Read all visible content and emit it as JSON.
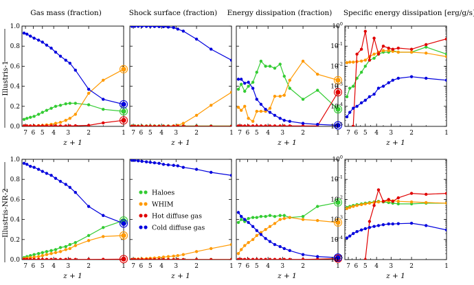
{
  "column_titles": [
    "Gas mass (fraction)",
    "Shock surface (fraction)",
    "Energy dissipation (fraction)",
    "Specific energy dissipation [erg/g/s]"
  ],
  "row_labels": [
    "Illustris-1",
    "Illustris-NR-2"
  ],
  "xlabel": "z + 1",
  "legend": [
    {
      "name": "Haloes",
      "color": "#33cc33"
    },
    {
      "name": "WHIM",
      "color": "#ff9900"
    },
    {
      "name": "Hot diffuse gas",
      "color": "#e00000"
    },
    {
      "name": "Cold diffuse gas",
      "color": "#0000dd"
    }
  ],
  "chart_data": [
    {
      "type": "line",
      "title": "Gas mass (fraction)",
      "row_label": "Illustris-1",
      "xscale": "log",
      "xlim": [
        1,
        7.5
      ],
      "yscale": "linear",
      "ylim": [
        0,
        1
      ],
      "xticks": [
        "7",
        "6",
        "5",
        "4",
        "3",
        "2",
        "1"
      ],
      "yticks": [
        "0.0",
        "0.2",
        "0.4",
        "0.6",
        "0.8",
        "1.0"
      ],
      "x": [
        7.2,
        6.8,
        6.35,
        5.9,
        5.4,
        5.0,
        4.6,
        4.2,
        3.85,
        3.5,
        3.15,
        2.9,
        2.6,
        2.0,
        1.5,
        1.0
      ],
      "series": [
        {
          "name": "Haloes",
          "values": [
            0.07,
            0.08,
            0.09,
            0.1,
            0.12,
            0.14,
            0.16,
            0.18,
            0.2,
            0.21,
            0.225,
            0.23,
            0.23,
            0.215,
            0.17,
            0.15
          ],
          "final_marker": true
        },
        {
          "name": "WHIM",
          "values": [
            0.005,
            0.005,
            0.005,
            0.006,
            0.008,
            0.01,
            0.015,
            0.02,
            0.03,
            0.04,
            0.06,
            0.08,
            0.12,
            0.33,
            0.46,
            0.57
          ],
          "final_marker": true
        },
        {
          "name": "Hot diffuse gas",
          "values": [
            0.005,
            0.005,
            0.005,
            0.005,
            0.005,
            0.005,
            0.005,
            0.005,
            0.005,
            0.005,
            0.005,
            0.005,
            0.006,
            0.01,
            0.035,
            0.06
          ],
          "final_marker": true
        },
        {
          "name": "Cold diffuse gas",
          "values": [
            0.93,
            0.92,
            0.9,
            0.88,
            0.86,
            0.84,
            0.81,
            0.78,
            0.74,
            0.7,
            0.66,
            0.63,
            0.56,
            0.37,
            0.27,
            0.22
          ],
          "final_marker": true
        }
      ]
    },
    {
      "type": "line",
      "title": "Shock surface (fraction)",
      "row_label": "Illustris-1",
      "xscale": "log",
      "xlim": [
        1,
        7.5
      ],
      "yscale": "linear",
      "ylim": [
        0,
        1
      ],
      "xticks": [
        "7",
        "6",
        "5",
        "4",
        "3",
        "2",
        "1"
      ],
      "x": [
        7.2,
        6.8,
        6.35,
        5.9,
        5.4,
        5.0,
        4.6,
        4.2,
        3.85,
        3.5,
        3.15,
        2.9,
        2.6,
        2.0,
        1.5,
        1.0
      ],
      "series": [
        {
          "name": "Haloes",
          "values": [
            0.005,
            0.005,
            0.005,
            0.005,
            0.005,
            0.005,
            0.005,
            0.005,
            0.005,
            0.005,
            0.005,
            0.005,
            0.005,
            0.005,
            0.005,
            0.005
          ]
        },
        {
          "name": "WHIM",
          "values": [
            0.002,
            0.002,
            0.002,
            0.002,
            0.002,
            0.002,
            0.002,
            0.002,
            0.002,
            0.003,
            0.005,
            0.01,
            0.03,
            0.11,
            0.21,
            0.34
          ]
        },
        {
          "name": "Hot diffuse gas",
          "values": [
            0.001,
            0.001,
            0.001,
            0.001,
            0.001,
            0.001,
            0.001,
            0.001,
            0.001,
            0.001,
            0.001,
            0.001,
            0.001,
            0.001,
            0.001,
            0.001
          ]
        },
        {
          "name": "Cold diffuse gas",
          "values": [
            0.998,
            0.998,
            0.998,
            0.998,
            0.997,
            0.997,
            0.996,
            0.995,
            0.994,
            0.99,
            0.985,
            0.97,
            0.95,
            0.87,
            0.77,
            0.66
          ]
        }
      ]
    },
    {
      "type": "line",
      "title": "Energy dissipation (fraction)",
      "row_label": "Illustris-1",
      "xscale": "log",
      "xlim": [
        1,
        7.5
      ],
      "yscale": "linear",
      "ylim": [
        0,
        1
      ],
      "xticks": [
        "7",
        "6",
        "5",
        "4",
        "3",
        "2",
        "1"
      ],
      "x": [
        7.2,
        6.8,
        6.35,
        5.9,
        5.4,
        5.0,
        4.6,
        4.2,
        3.85,
        3.5,
        3.15,
        2.9,
        2.6,
        2.0,
        1.5,
        1.0
      ],
      "series": [
        {
          "name": "Haloes",
          "values": [
            0.37,
            0.42,
            0.35,
            0.4,
            0.44,
            0.54,
            0.65,
            0.6,
            0.6,
            0.58,
            0.62,
            0.5,
            0.38,
            0.27,
            0.36,
            0.17
          ],
          "final_marker": true
        },
        {
          "name": "WHIM",
          "values": [
            0.19,
            0.16,
            0.2,
            0.08,
            0.05,
            0.15,
            0.15,
            0.15,
            0.18,
            0.3,
            0.3,
            0.31,
            0.46,
            0.65,
            0.52,
            0.46
          ],
          "final_marker": true
        },
        {
          "name": "Hot diffuse gas",
          "values": [
            0.005,
            0.005,
            0.005,
            0.005,
            0.005,
            0.005,
            0.005,
            0.005,
            0.005,
            0.005,
            0.005,
            0.005,
            0.005,
            0.005,
            0.005,
            0.34
          ],
          "final_marker": true
        },
        {
          "name": "Cold diffuse gas",
          "values": [
            0.47,
            0.47,
            0.43,
            0.44,
            0.38,
            0.27,
            0.22,
            0.17,
            0.14,
            0.11,
            0.08,
            0.06,
            0.05,
            0.03,
            0.02,
            0.01
          ],
          "final_marker": true
        }
      ]
    },
    {
      "type": "line",
      "title": "Specific energy dissipation [erg/g/s]",
      "row_label": "Illustris-1",
      "xscale": "log",
      "xlim": [
        1,
        7.5
      ],
      "yscale": "log",
      "ylim": [
        1e-05,
        1
      ],
      "xticks": [
        "7",
        "6",
        "5",
        "4",
        "3",
        "2",
        "1"
      ],
      "x": [
        7.2,
        6.8,
        6.35,
        5.9,
        5.4,
        5.0,
        4.6,
        4.2,
        3.85,
        3.5,
        3.15,
        2.9,
        2.6,
        2.0,
        1.5,
        1.0
      ],
      "series": [
        {
          "name": "Haloes",
          "values": [
            0.0003,
            0.0008,
            0.001,
            0.0025,
            0.005,
            0.01,
            0.02,
            0.025,
            0.04,
            0.05,
            0.05,
            0.06,
            0.05,
            0.05,
            0.09,
            0.04
          ]
        },
        {
          "name": "WHIM",
          "values": [
            0.015,
            0.016,
            0.016,
            0.017,
            0.018,
            0.02,
            0.03,
            0.04,
            0.05,
            0.06,
            0.06,
            0.055,
            0.05,
            0.05,
            0.045,
            0.03
          ]
        },
        {
          "name": "Hot diffuse gas",
          "values": [
            null,
            null,
            1e-05,
            0.04,
            0.07,
            0.55,
            0.02,
            0.25,
            0.04,
            0.1,
            0.08,
            0.07,
            0.08,
            0.07,
            0.12,
            0.23
          ]
        },
        {
          "name": "Cold diffuse gas",
          "values": [
            3e-05,
            5e-05,
            8e-05,
            0.0001,
            0.00015,
            0.0002,
            0.0003,
            0.0004,
            0.0008,
            0.001,
            0.0015,
            0.002,
            0.0025,
            0.003,
            0.0025,
            0.002
          ]
        }
      ]
    },
    {
      "type": "line",
      "title": "Gas mass (fraction)",
      "row_label": "Illustris-NR-2",
      "xscale": "log",
      "xlim": [
        1,
        7.5
      ],
      "yscale": "linear",
      "ylim": [
        0,
        1
      ],
      "xticks": [
        "7",
        "6",
        "5",
        "4",
        "3",
        "2",
        "1"
      ],
      "yticks": [
        "0.0",
        "0.2",
        "0.4",
        "0.6",
        "0.8",
        "1.0"
      ],
      "x": [
        7.2,
        6.8,
        6.35,
        5.9,
        5.4,
        5.0,
        4.6,
        4.2,
        3.85,
        3.5,
        3.15,
        2.9,
        2.6,
        2.0,
        1.5,
        1.0
      ],
      "series": [
        {
          "name": "Haloes",
          "values": [
            0.02,
            0.03,
            0.04,
            0.05,
            0.06,
            0.07,
            0.08,
            0.09,
            0.1,
            0.12,
            0.13,
            0.15,
            0.17,
            0.24,
            0.32,
            0.39
          ],
          "final_marker": true
        },
        {
          "name": "WHIM",
          "values": [
            0.01,
            0.015,
            0.02,
            0.025,
            0.03,
            0.04,
            0.05,
            0.06,
            0.07,
            0.08,
            0.1,
            0.11,
            0.14,
            0.19,
            0.23,
            0.24
          ],
          "final_marker": true
        },
        {
          "name": "Hot diffuse gas",
          "values": [
            0.002,
            0.002,
            0.002,
            0.002,
            0.002,
            0.002,
            0.002,
            0.002,
            0.002,
            0.002,
            0.002,
            0.002,
            0.002,
            0.002,
            0.003,
            0.005
          ],
          "final_marker": true
        },
        {
          "name": "Cold diffuse gas",
          "values": [
            0.96,
            0.95,
            0.93,
            0.92,
            0.9,
            0.88,
            0.86,
            0.84,
            0.81,
            0.78,
            0.75,
            0.72,
            0.67,
            0.53,
            0.44,
            0.36
          ],
          "final_marker": true
        }
      ]
    },
    {
      "type": "line",
      "title": "Shock surface (fraction)",
      "row_label": "Illustris-NR-2",
      "xscale": "log",
      "xlim": [
        1,
        7.5
      ],
      "yscale": "linear",
      "ylim": [
        0,
        1
      ],
      "xticks": [
        "7",
        "6",
        "5",
        "4",
        "3",
        "2",
        "1"
      ],
      "x": [
        7.2,
        6.8,
        6.35,
        5.9,
        5.4,
        5.0,
        4.6,
        4.2,
        3.85,
        3.5,
        3.15,
        2.9,
        2.6,
        2.0,
        1.5,
        1.0
      ],
      "series": [
        {
          "name": "Haloes",
          "values": [
            0.001,
            0.001,
            0.001,
            0.001,
            0.001,
            0.001,
            0.001,
            0.001,
            0.001,
            0.001,
            0.001,
            0.001,
            0.001,
            0.001,
            0.001,
            0.001
          ]
        },
        {
          "name": "WHIM",
          "values": [
            0.002,
            0.004,
            0.006,
            0.008,
            0.01,
            0.013,
            0.016,
            0.02,
            0.025,
            0.03,
            0.035,
            0.04,
            0.05,
            0.08,
            0.11,
            0.15
          ]
        },
        {
          "name": "Hot diffuse gas",
          "values": [
            0.0005,
            0.0005,
            0.0005,
            0.0005,
            0.0005,
            0.0005,
            0.0005,
            0.0005,
            0.0005,
            0.0005,
            0.0005,
            0.0005,
            0.0005,
            0.0005,
            0.0005,
            0.0005
          ]
        },
        {
          "name": "Cold diffuse gas",
          "values": [
            0.99,
            0.99,
            0.985,
            0.98,
            0.975,
            0.97,
            0.965,
            0.96,
            0.95,
            0.945,
            0.94,
            0.935,
            0.92,
            0.9,
            0.87,
            0.84
          ]
        }
      ]
    },
    {
      "type": "line",
      "title": "Energy dissipation (fraction)",
      "row_label": "Illustris-NR-2",
      "xscale": "log",
      "xlim": [
        1,
        7.5
      ],
      "yscale": "linear",
      "ylim": [
        0,
        1
      ],
      "xticks": [
        "7",
        "6",
        "5",
        "4",
        "3",
        "2",
        "1"
      ],
      "x": [
        7.2,
        6.8,
        6.35,
        5.9,
        5.4,
        5.0,
        4.6,
        4.2,
        3.85,
        3.5,
        3.15,
        2.9,
        2.6,
        2.0,
        1.5,
        1.0
      ],
      "series": [
        {
          "name": "Haloes",
          "values": [
            0.37,
            0.4,
            0.38,
            0.41,
            0.42,
            0.42,
            0.43,
            0.43,
            0.44,
            0.43,
            0.44,
            0.44,
            0.42,
            0.43,
            0.53,
            0.57
          ],
          "final_marker": true
        },
        {
          "name": "WHIM",
          "values": [
            0.06,
            0.1,
            0.14,
            0.17,
            0.2,
            0.24,
            0.27,
            0.3,
            0.33,
            0.36,
            0.4,
            0.41,
            0.42,
            0.4,
            0.39,
            0.37
          ],
          "final_marker": true
        },
        {
          "name": "Hot diffuse gas",
          "values": [
            0.002,
            0.002,
            0.002,
            0.002,
            0.002,
            0.002,
            0.002,
            0.002,
            0.002,
            0.002,
            0.002,
            0.002,
            0.002,
            0.002,
            0.005,
            0.01
          ],
          "final_marker": true
        },
        {
          "name": "Cold diffuse gas",
          "values": [
            0.47,
            0.43,
            0.4,
            0.37,
            0.33,
            0.29,
            0.25,
            0.21,
            0.18,
            0.15,
            0.13,
            0.11,
            0.09,
            0.05,
            0.03,
            0.02
          ],
          "final_marker": true
        }
      ]
    },
    {
      "type": "line",
      "title": "Specific energy dissipation [erg/g/s]",
      "row_label": "Illustris-NR-2",
      "xscale": "log",
      "xlim": [
        1,
        7.5
      ],
      "yscale": "log",
      "ylim": [
        1e-05,
        1
      ],
      "xticks": [
        "7",
        "6",
        "5",
        "4",
        "3",
        "2",
        "1"
      ],
      "x": [
        7.2,
        6.8,
        6.35,
        5.9,
        5.4,
        5.0,
        4.6,
        4.2,
        3.85,
        3.5,
        3.15,
        2.9,
        2.6,
        2.0,
        1.5,
        1.0
      ],
      "series": [
        {
          "name": "Haloes",
          "values": [
            0.004,
            0.0045,
            0.005,
            0.0055,
            0.006,
            0.0065,
            0.007,
            0.0075,
            0.008,
            0.0075,
            0.007,
            0.0065,
            0.006,
            0.006,
            0.0065,
            0.0065
          ]
        },
        {
          "name": "WHIM",
          "values": [
            0.0035,
            0.004,
            0.0045,
            0.005,
            0.0055,
            0.006,
            0.0065,
            0.007,
            0.0075,
            0.008,
            0.0085,
            0.0085,
            0.008,
            0.0075,
            0.007,
            0.0065
          ]
        },
        {
          "name": "Hot diffuse gas",
          "values": [
            null,
            null,
            null,
            null,
            null,
            1e-05,
            0.0008,
            0.005,
            0.03,
            0.008,
            0.01,
            0.008,
            0.012,
            0.02,
            0.018,
            0.02
          ]
        },
        {
          "name": "Cold diffuse gas",
          "values": [
            0.00012,
            0.00015,
            0.0002,
            0.00025,
            0.0003,
            0.00035,
            0.0004,
            0.00045,
            0.0005,
            0.00055,
            0.0006,
            0.0006,
            0.00062,
            0.00065,
            0.0005,
            0.0003
          ]
        }
      ]
    }
  ]
}
